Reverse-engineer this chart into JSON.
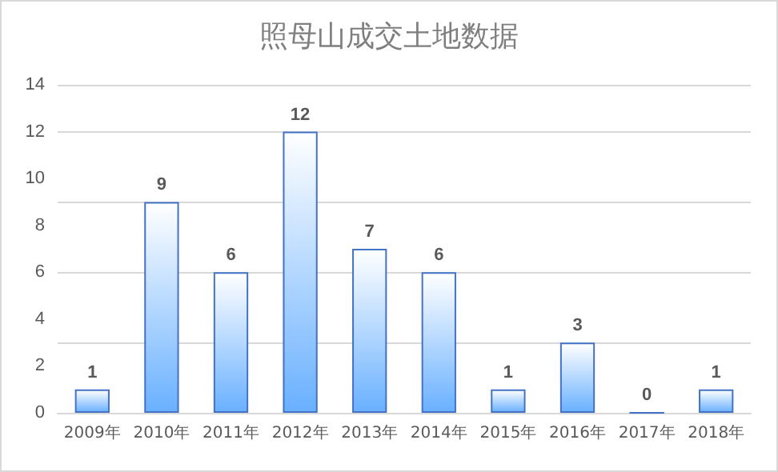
{
  "chart_data": {
    "type": "bar",
    "title": "照母山成交土地数据",
    "categories": [
      "2009年",
      "2010年",
      "2011年",
      "2012年",
      "2013年",
      "2014年",
      "2015年",
      "2016年",
      "2017年",
      "2018年"
    ],
    "values": [
      1,
      9,
      6,
      12,
      7,
      6,
      1,
      3,
      0,
      1
    ],
    "color": "#4472c4",
    "ylim": [
      0,
      14
    ],
    "yticks": [
      0,
      2,
      4,
      6,
      8,
      10,
      12,
      14
    ],
    "grid": "y",
    "data_labels": true
  }
}
